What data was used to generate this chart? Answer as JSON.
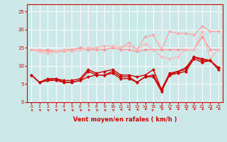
{
  "x": [
    0,
    1,
    2,
    3,
    4,
    5,
    6,
    7,
    8,
    9,
    10,
    11,
    12,
    13,
    14,
    15,
    16,
    17,
    18,
    19,
    20,
    21,
    22,
    23
  ],
  "bg_color": "#cce8e8",
  "grid_color": "#ffffff",
  "xlabel": "Vent moyen/en rafales ( km/h )",
  "xlabel_color": "#cc0000",
  "series": [
    {
      "color": "#ffaaaa",
      "lw": 1.0,
      "data": [
        14.5,
        14.5,
        14.0,
        14.0,
        14.0,
        14.5,
        15.0,
        14.5,
        15.0,
        15.5,
        15.5,
        15.0,
        16.5,
        14.5,
        18.0,
        18.5,
        14.5,
        19.5,
        19.0,
        19.0,
        18.5,
        21.0,
        19.5,
        19.5
      ],
      "marker": "D",
      "markersize": 2.5
    },
    {
      "color": "#ff9999",
      "lw": 1.0,
      "data": [
        14.5,
        14.0,
        14.5,
        14.0,
        14.5,
        14.5,
        15.0,
        14.5,
        14.5,
        14.5,
        15.0,
        14.5,
        14.5,
        14.0,
        14.5,
        14.5,
        14.5,
        14.5,
        14.5,
        14.5,
        14.5,
        18.0,
        14.5,
        14.5
      ],
      "marker": "D",
      "markersize": 2.5
    },
    {
      "color": "#ffbbbb",
      "lw": 1.0,
      "data": [
        14.5,
        14.0,
        13.5,
        14.0,
        14.5,
        14.0,
        14.5,
        15.0,
        15.0,
        15.5,
        15.5,
        15.0,
        15.5,
        14.5,
        16.0,
        14.5,
        12.5,
        12.0,
        12.5,
        14.5,
        14.5,
        19.5,
        12.0,
        14.5
      ],
      "marker": "D",
      "markersize": 2.5
    },
    {
      "color": "#cc0000",
      "lw": 1.0,
      "data": [
        7.5,
        5.5,
        6.5,
        6.5,
        6.0,
        6.0,
        6.5,
        9.0,
        8.0,
        8.5,
        9.0,
        7.5,
        7.5,
        7.0,
        7.5,
        9.0,
        3.5,
        7.5,
        8.5,
        9.5,
        12.5,
        11.5,
        11.5,
        9.5
      ],
      "marker": "D",
      "markersize": 2.5
    },
    {
      "color": "#cc0000",
      "lw": 1.0,
      "data": [
        7.5,
        5.5,
        6.0,
        6.5,
        5.5,
        5.5,
        6.0,
        8.5,
        7.5,
        7.5,
        8.5,
        7.0,
        7.0,
        5.5,
        7.0,
        7.0,
        3.0,
        7.5,
        8.0,
        8.5,
        12.0,
        11.0,
        11.5,
        9.0
      ],
      "marker": "D",
      "markersize": 2.5
    },
    {
      "color": "#cc0000",
      "lw": 1.0,
      "data": [
        7.5,
        5.5,
        6.0,
        6.0,
        5.5,
        5.5,
        6.0,
        7.0,
        7.5,
        7.5,
        8.0,
        6.5,
        6.5,
        5.5,
        7.0,
        7.5,
        3.5,
        8.0,
        8.5,
        9.0,
        12.5,
        12.0,
        11.5,
        9.5
      ],
      "marker": "D",
      "markersize": 2.5
    }
  ],
  "ylim": [
    0,
    27
  ],
  "xlim": [
    -0.5,
    23.5
  ],
  "yticks": [
    0,
    5,
    10,
    15,
    20,
    25
  ],
  "xticks": [
    0,
    1,
    2,
    3,
    4,
    5,
    6,
    7,
    8,
    9,
    10,
    11,
    12,
    13,
    14,
    15,
    16,
    17,
    18,
    19,
    20,
    21,
    22,
    23
  ],
  "tick_color": "#cc0000",
  "wind_arrows_angles": [
    225,
    225,
    225,
    225,
    225,
    225,
    225,
    225,
    225,
    225,
    225,
    270,
    270,
    270,
    315,
    135,
    315,
    315,
    315,
    315,
    315,
    315,
    315,
    315
  ]
}
